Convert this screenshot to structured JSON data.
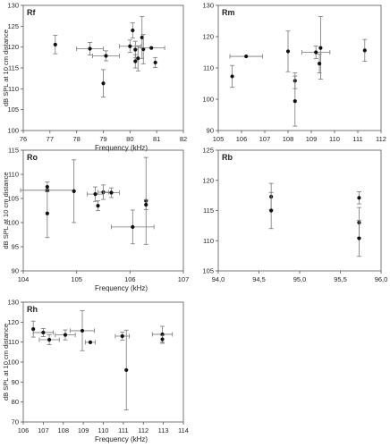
{
  "chart_data": [
    {
      "type": "scatter",
      "panel_label": "Rf",
      "xlabel": "Frequency (kHz)",
      "ylabel": "dB SPL at 10 cm distance",
      "xlim": [
        76,
        82
      ],
      "ylim": [
        100,
        130
      ],
      "xticks": [
        "76",
        "77",
        "78",
        "79",
        "80",
        "81",
        "82"
      ],
      "yticks": [
        "100",
        "105",
        "110",
        "115",
        "120",
        "125",
        "130"
      ],
      "error_bars": true,
      "points": [
        {
          "x": 77.2,
          "y": 120.6,
          "xerr": 0,
          "yerr": 2.2
        },
        {
          "x": 78.5,
          "y": 119.6,
          "xerr": 0.5,
          "yerr": 1.5
        },
        {
          "x": 79.1,
          "y": 117.9,
          "xerr": 0.5,
          "yerr": 1.2
        },
        {
          "x": 79.0,
          "y": 111.3,
          "xerr": 0,
          "yerr": 3.3
        },
        {
          "x": 80.0,
          "y": 120.2,
          "xerr": 0.4,
          "yerr": 1.5
        },
        {
          "x": 80.1,
          "y": 124.0,
          "xerr": 0,
          "yerr": 1.8
        },
        {
          "x": 80.2,
          "y": 119.4,
          "xerr": 0,
          "yerr": 2.0
        },
        {
          "x": 80.3,
          "y": 117.3,
          "xerr": 0,
          "yerr": 3.0
        },
        {
          "x": 80.2,
          "y": 116.6,
          "xerr": 0,
          "yerr": 1.6
        },
        {
          "x": 80.45,
          "y": 122.3,
          "xerr": 0,
          "yerr": 5.0
        },
        {
          "x": 80.5,
          "y": 119.5,
          "xerr": 0,
          "yerr": 3.5
        },
        {
          "x": 80.8,
          "y": 119.8,
          "xerr": 0.5,
          "yerr": 0
        },
        {
          "x": 80.95,
          "y": 116.3,
          "xerr": 0,
          "yerr": 1.2
        }
      ]
    },
    {
      "type": "scatter",
      "panel_label": "Rm",
      "xlabel": "",
      "ylabel": "",
      "xlim": [
        105,
        112
      ],
      "ylim": [
        90,
        130
      ],
      "xticks": [
        "105",
        "106",
        "107",
        "108",
        "109",
        "110",
        "111",
        "112"
      ],
      "yticks": [
        "90",
        "100",
        "110",
        "120",
        "130"
      ],
      "error_bars": true,
      "points": [
        {
          "x": 105.6,
          "y": 107.3,
          "xerr": 0,
          "yerr": 3.5
        },
        {
          "x": 106.2,
          "y": 113.7,
          "xerr": 0.7,
          "yerr": 0
        },
        {
          "x": 108.0,
          "y": 115.3,
          "xerr": 0,
          "yerr": 6.5
        },
        {
          "x": 108.3,
          "y": 105.9,
          "xerr": 0,
          "yerr": 2.5
        },
        {
          "x": 108.3,
          "y": 99.4,
          "xerr": 0,
          "yerr": 8.0
        },
        {
          "x": 109.2,
          "y": 115.0,
          "xerr": 0.6,
          "yerr": 2.0
        },
        {
          "x": 109.4,
          "y": 116.4,
          "xerr": 0,
          "yerr": 10.0
        },
        {
          "x": 109.35,
          "y": 111.4,
          "xerr": 0,
          "yerr": 3.0
        },
        {
          "x": 111.3,
          "y": 115.6,
          "xerr": 0,
          "yerr": 3.5
        }
      ]
    },
    {
      "type": "scatter",
      "panel_label": "Ro",
      "xlabel": "Frequency (kHz)",
      "ylabel": "dB SPL at 10 cm distance",
      "xlim": [
        104,
        107
      ],
      "ylim": [
        90,
        115
      ],
      "xticks": [
        "104",
        "105",
        "106",
        "107"
      ],
      "yticks": [
        "90",
        "95",
        "100",
        "105",
        "110",
        "115"
      ],
      "error_bars": true,
      "points": [
        {
          "x": 104.45,
          "y": 107.4,
          "xerr": 0,
          "yerr": 1.0
        },
        {
          "x": 104.45,
          "y": 106.7,
          "xerr": 0.5,
          "yerr": 0
        },
        {
          "x": 104.45,
          "y": 101.9,
          "xerr": 0,
          "yerr": 5.0
        },
        {
          "x": 104.95,
          "y": 106.5,
          "xerr": 0,
          "yerr": 6.5
        },
        {
          "x": 105.35,
          "y": 105.9,
          "xerr": 0.15,
          "yerr": 1.5
        },
        {
          "x": 105.4,
          "y": 103.5,
          "xerr": 0,
          "yerr": 1.0
        },
        {
          "x": 105.5,
          "y": 106.3,
          "xerr": 0.1,
          "yerr": 1.5
        },
        {
          "x": 105.65,
          "y": 106.2,
          "xerr": 0.15,
          "yerr": 1.0
        },
        {
          "x": 106.05,
          "y": 99.1,
          "xerr": 0.4,
          "yerr": 3.5
        },
        {
          "x": 106.3,
          "y": 104.5,
          "xerr": 0,
          "yerr": 9.0
        },
        {
          "x": 106.3,
          "y": 103.7,
          "xerr": 0,
          "yerr": 1.0
        }
      ]
    },
    {
      "type": "scatter",
      "panel_label": "Rb",
      "xlabel": "",
      "ylabel": "",
      "xlim": [
        94.0,
        96.0
      ],
      "ylim": [
        105,
        125
      ],
      "xticks": [
        "94,0",
        "94,5",
        "95,0",
        "95,5",
        "96,0"
      ],
      "yticks": [
        "105",
        "110",
        "115",
        "120",
        "125"
      ],
      "error_bars": true,
      "points": [
        {
          "x": 94.65,
          "y": 117.3,
          "xerr": 0,
          "yerr": 2.2
        },
        {
          "x": 94.65,
          "y": 115.0,
          "xerr": 0,
          "yerr": 3.0
        },
        {
          "x": 95.73,
          "y": 117.1,
          "xerr": 0,
          "yerr": 1.0
        },
        {
          "x": 95.73,
          "y": 113.0,
          "xerr": 0,
          "yerr": 2.5
        },
        {
          "x": 95.73,
          "y": 110.4,
          "xerr": 0,
          "yerr": 3.0
        }
      ]
    },
    {
      "type": "scatter",
      "panel_label": "Rh",
      "xlabel": "Frequency (kHz)",
      "ylabel": "dB SPL at 10 cm distance",
      "xlim": [
        106,
        114
      ],
      "ylim": [
        70,
        130
      ],
      "xticks": [
        "106",
        "107",
        "108",
        "109",
        "110",
        "111",
        "112",
        "113",
        "114"
      ],
      "yticks": [
        "70",
        "80",
        "90",
        "100",
        "110",
        "120",
        "130"
      ],
      "error_bars": true,
      "points": [
        {
          "x": 106.5,
          "y": 116.5,
          "xerr": 0,
          "yerr": 4.0
        },
        {
          "x": 107.0,
          "y": 114.8,
          "xerr": 0.5,
          "yerr": 2.0
        },
        {
          "x": 107.3,
          "y": 111.2,
          "xerr": 0.5,
          "yerr": 2.5
        },
        {
          "x": 108.1,
          "y": 113.6,
          "xerr": 0.5,
          "yerr": 2.5
        },
        {
          "x": 108.95,
          "y": 115.7,
          "xerr": 0.6,
          "yerr": 10.0
        },
        {
          "x": 109.35,
          "y": 109.9,
          "xerr": 0.25,
          "yerr": 0
        },
        {
          "x": 110.95,
          "y": 113.0,
          "xerr": 0.35,
          "yerr": 2.0
        },
        {
          "x": 111.15,
          "y": 96.0,
          "xerr": 0,
          "yerr": 20.0
        },
        {
          "x": 112.95,
          "y": 113.9,
          "xerr": 0.5,
          "yerr": 4.0
        },
        {
          "x": 112.95,
          "y": 111.4,
          "xerr": 0,
          "yerr": 2.0
        }
      ]
    }
  ]
}
